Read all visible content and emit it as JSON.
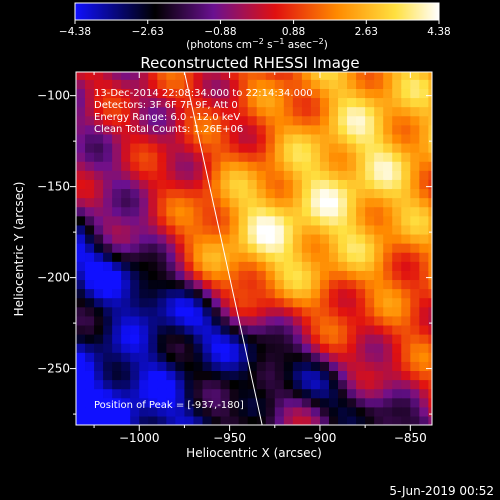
{
  "chart_data": {
    "type": "heatmap",
    "title": "Reconstructed RHESSI Image",
    "xlabel": "Heliocentric X (arcsec)",
    "ylabel": "Heliocentric Y (arcsec)",
    "xlim": [
      -1035,
      -838
    ],
    "ylim": [
      -281,
      -87
    ],
    "x_ticks": [
      -1000,
      -950,
      -900,
      -850
    ],
    "x_tick_labels": [
      "−1000",
      "−950",
      "−900",
      "−850"
    ],
    "y_ticks": [
      -100,
      -150,
      -200,
      -250
    ],
    "y_tick_labels": [
      "−100",
      "−150",
      "−200",
      "−250"
    ],
    "colorbar": {
      "min": -4.38,
      "max": 4.38,
      "tick_labels": [
        "−4.38",
        "−2.63",
        "−0.88",
        "0.88",
        "2.63",
        "4.38"
      ],
      "unit_parts": [
        "(photons cm",
        "−2",
        " s",
        "−1",
        " asec",
        "−2",
        ")"
      ]
    },
    "annotations": [
      "13-Dec-2014 22:08:34.000 to 22:14:34.000",
      "Detectors: 3F 6F 7F 9F, Att 0",
      "Energy Range: 6.0 - 12.0 keV",
      "Clean     Total Counts: 1.26E+06"
    ],
    "peak_label": "Position of Peak = [-937,-180]",
    "peak": [
      -937,
      -180
    ],
    "limb_line": [
      [
        -975,
        -87
      ],
      [
        -932,
        -281
      ]
    ],
    "timestamp": "5-Jun-2019 00:52"
  }
}
